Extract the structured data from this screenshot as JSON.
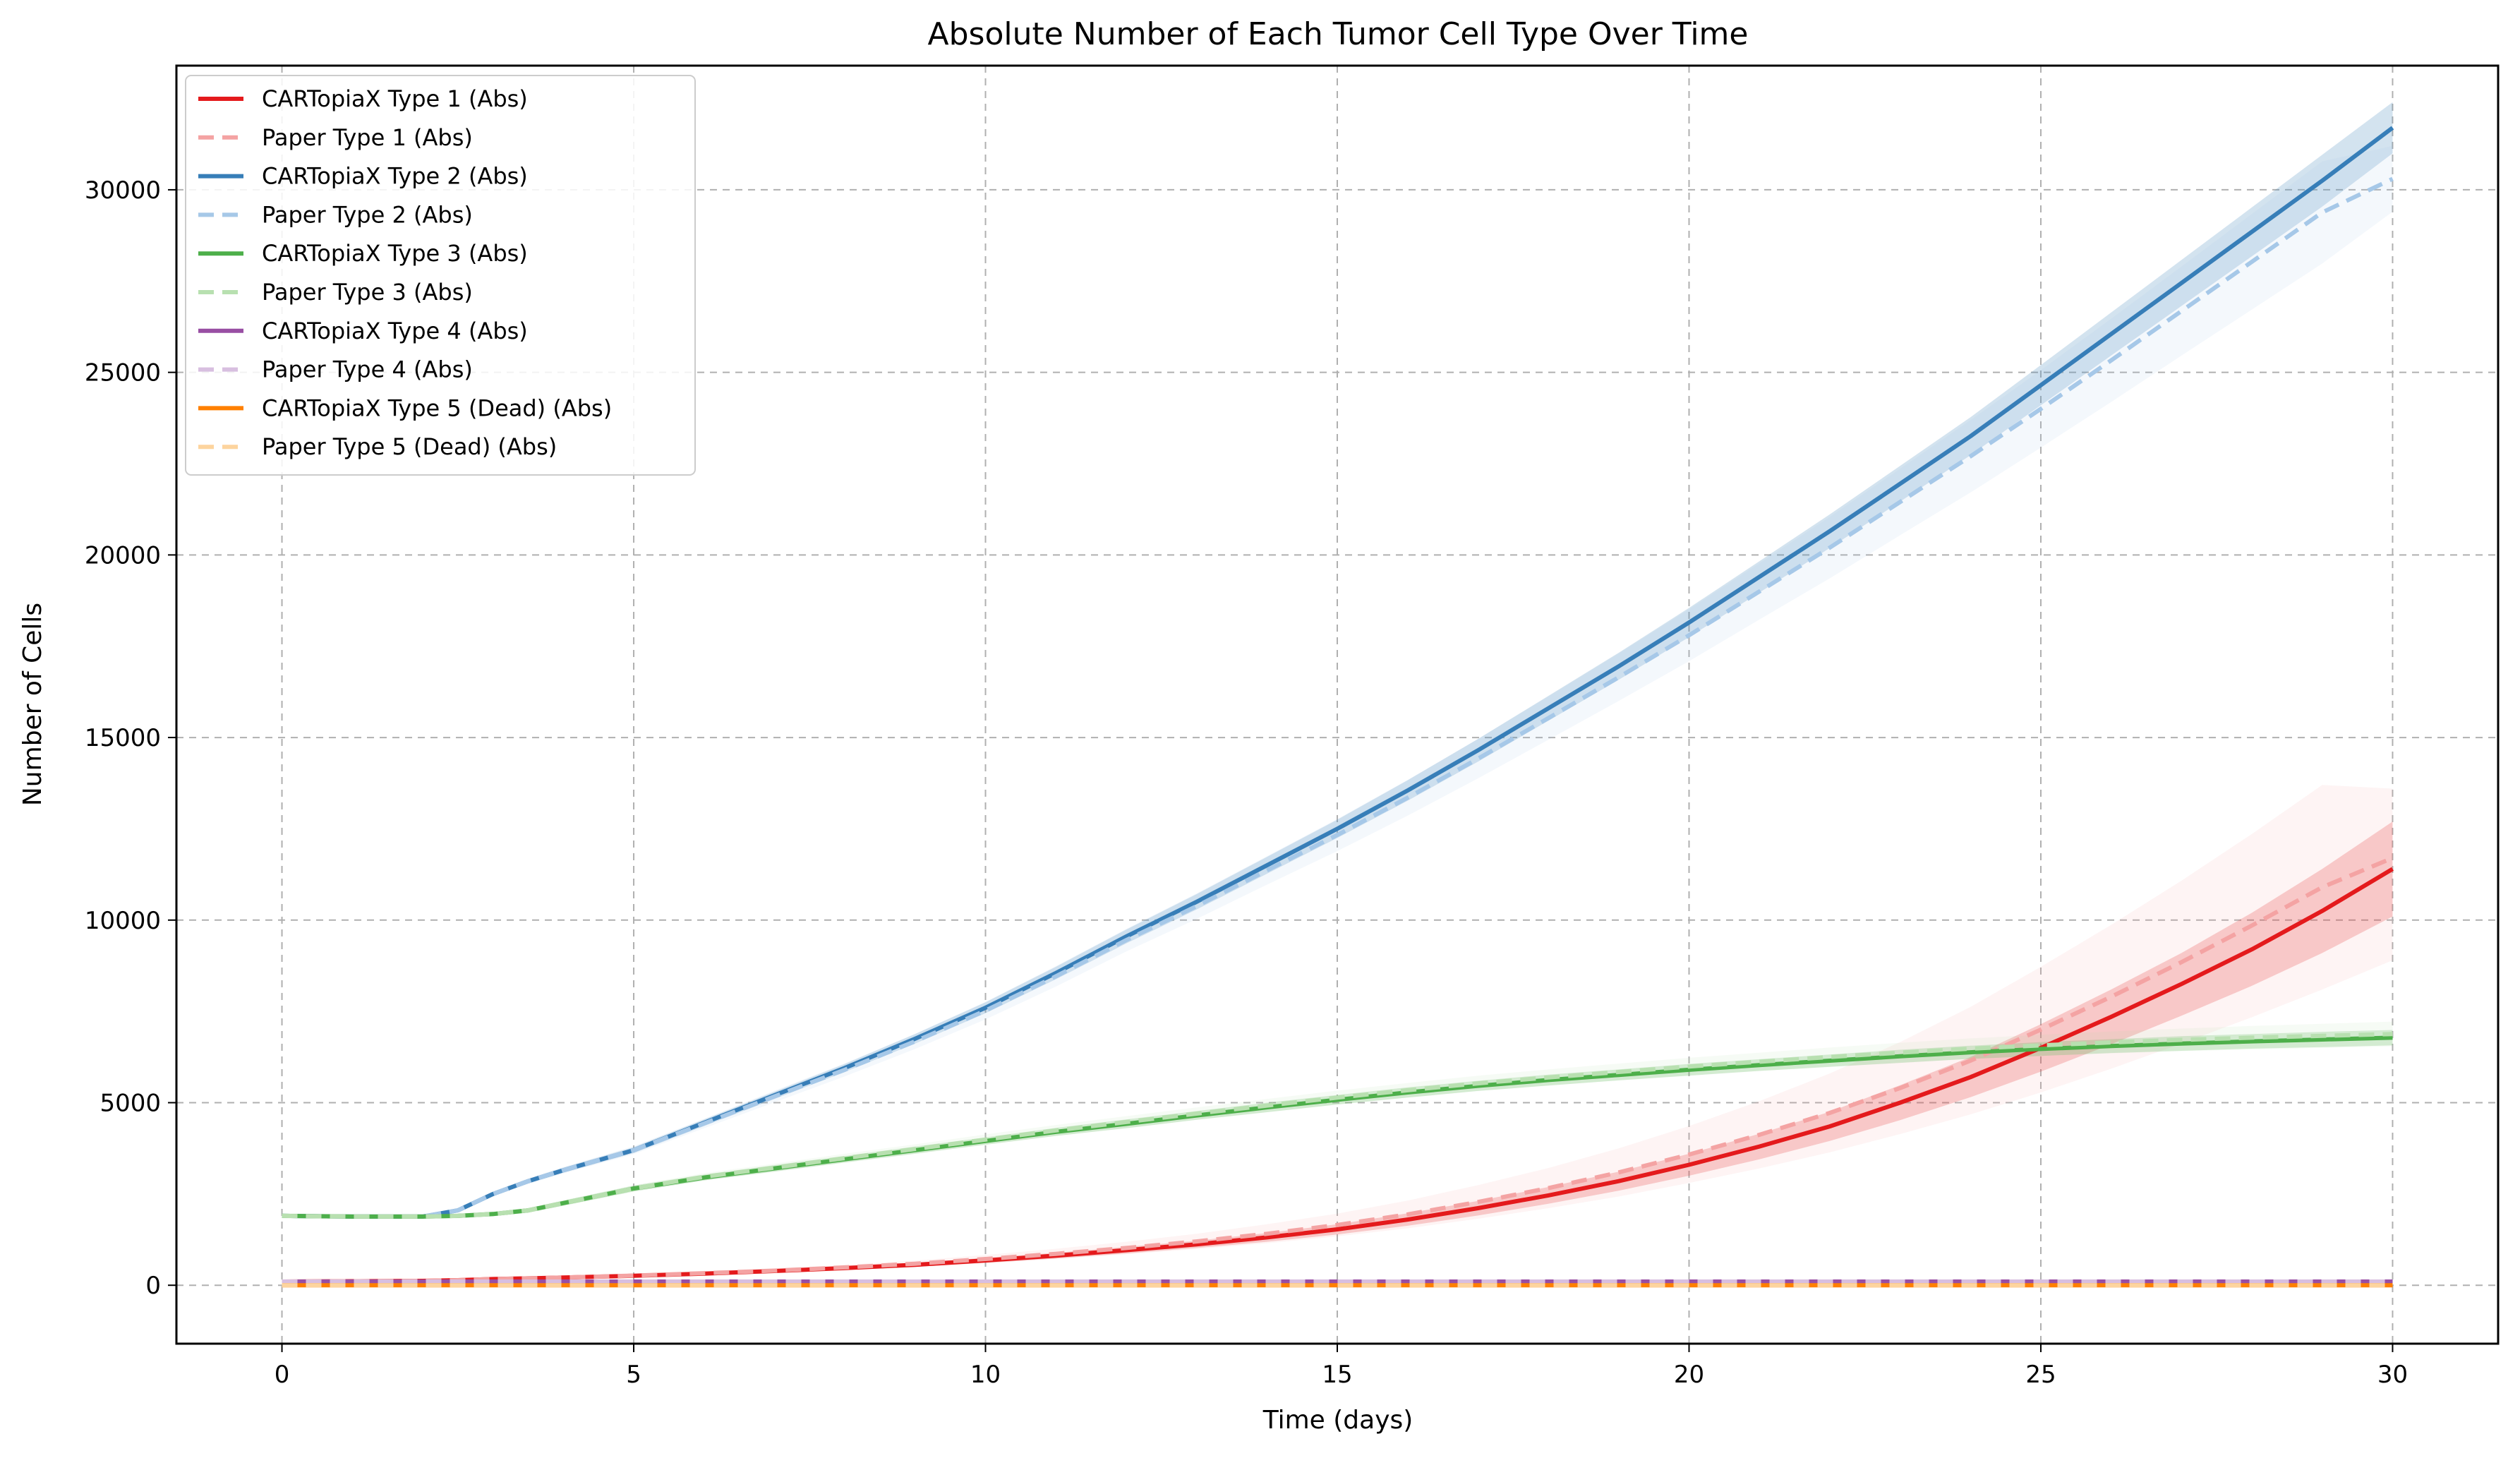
{
  "chart_data": {
    "type": "line",
    "title": "Absolute Number of Each Tumor Cell Type Over Time",
    "xlabel": "Time (days)",
    "ylabel": "Number of Cells",
    "xlim": [
      -1.5,
      31.5
    ],
    "ylim": [
      -1600,
      33400
    ],
    "xticks": [
      0,
      5,
      10,
      15,
      20,
      25,
      30
    ],
    "yticks": [
      0,
      5000,
      10000,
      15000,
      20000,
      25000,
      30000
    ],
    "grid": true,
    "legend_position": "top-left",
    "x": [
      0,
      1,
      2,
      2.5,
      3,
      3.5,
      4,
      5,
      6,
      7,
      8,
      9,
      10,
      11,
      12,
      13,
      14,
      15,
      16,
      17,
      18,
      19,
      20,
      21,
      22,
      23,
      24,
      25,
      26,
      27,
      28,
      29,
      30
    ],
    "series": [
      {
        "name": "CARTopiaX Type 1 (Abs)",
        "color": "#e41a1c",
        "dashed": false,
        "values": [
          100,
          110,
          120,
          140,
          170,
          190,
          210,
          260,
          320,
          390,
          470,
          560,
          680,
          810,
          960,
          1120,
          1310,
          1530,
          1800,
          2110,
          2460,
          2850,
          3300,
          3800,
          4350,
          5000,
          5700,
          6500,
          7350,
          8250,
          9200,
          10250,
          11400
        ],
        "lower": [
          90,
          100,
          110,
          130,
          155,
          175,
          190,
          235,
          290,
          350,
          420,
          505,
          610,
          730,
          870,
          1020,
          1190,
          1390,
          1630,
          1910,
          2230,
          2590,
          3000,
          3450,
          3950,
          4520,
          5150,
          5850,
          6600,
          7380,
          8200,
          9100,
          10100
        ],
        "upper": [
          110,
          120,
          130,
          150,
          185,
          205,
          230,
          285,
          350,
          430,
          520,
          615,
          750,
          890,
          1050,
          1220,
          1430,
          1670,
          1970,
          2310,
          2690,
          3110,
          3600,
          4150,
          4750,
          5480,
          6250,
          7150,
          8100,
          9100,
          10200,
          11400,
          12700
        ]
      },
      {
        "name": "Paper Type 1 (Abs)",
        "color": "#f4a3a3",
        "dashed": true,
        "values": [
          100,
          110,
          120,
          140,
          170,
          190,
          210,
          265,
          330,
          400,
          490,
          590,
          720,
          860,
          1020,
          1200,
          1410,
          1650,
          1940,
          2280,
          2660,
          3090,
          3580,
          4120,
          4720,
          5400,
          6150,
          7000,
          7900,
          8850,
          9850,
          10900,
          11700
        ],
        "lower": [
          90,
          100,
          110,
          130,
          150,
          170,
          190,
          235,
          290,
          350,
          425,
          505,
          610,
          720,
          850,
          990,
          1150,
          1340,
          1560,
          1820,
          2110,
          2430,
          2800,
          3200,
          3640,
          4140,
          4680,
          5280,
          5930,
          6620,
          7340,
          8100,
          8900
        ],
        "upper": [
          110,
          120,
          130,
          150,
          190,
          210,
          230,
          295,
          370,
          450,
          555,
          675,
          830,
          1000,
          1190,
          1410,
          1670,
          1960,
          2320,
          2740,
          3210,
          3750,
          4360,
          5040,
          5800,
          6660,
          7620,
          8720,
          9870,
          11080,
          12360,
          13700,
          13600
        ]
      },
      {
        "name": "CARTopiaX Type 2 (Abs)",
        "color": "#377eb8",
        "dashed": false,
        "values": [
          1900,
          1880,
          1880,
          2050,
          2500,
          2850,
          3150,
          3700,
          4450,
          5200,
          5950,
          6750,
          7600,
          8550,
          9550,
          10500,
          11500,
          12500,
          13550,
          14650,
          15800,
          16950,
          18150,
          19400,
          20650,
          21950,
          23250,
          24650,
          26050,
          27450,
          28850,
          30250,
          31700
        ],
        "lower": [
          1860,
          1840,
          1840,
          2000,
          2440,
          2790,
          3080,
          3620,
          4360,
          5100,
          5840,
          6620,
          7450,
          8380,
          9360,
          10290,
          11270,
          12250,
          13270,
          14340,
          15460,
          16580,
          17750,
          18970,
          20190,
          21460,
          22730,
          24100,
          25460,
          26820,
          28180,
          29540,
          31000
        ],
        "upper": [
          1940,
          1920,
          1920,
          2100,
          2560,
          2910,
          3220,
          3780,
          4540,
          5300,
          6060,
          6880,
          7750,
          8720,
          9740,
          10710,
          11730,
          12750,
          13830,
          14960,
          16140,
          17320,
          18550,
          19830,
          21110,
          22440,
          23770,
          25200,
          26640,
          28080,
          29520,
          30960,
          32400
        ]
      },
      {
        "name": "Paper Type 2 (Abs)",
        "color": "#a6c8e8",
        "dashed": true,
        "values": [
          1900,
          1880,
          1880,
          2050,
          2500,
          2850,
          3150,
          3700,
          4430,
          5170,
          5900,
          6680,
          7520,
          8460,
          9450,
          10380,
          11360,
          12330,
          13350,
          14420,
          15530,
          16650,
          17800,
          19000,
          20200,
          21450,
          22700,
          24000,
          25330,
          26680,
          28030,
          29380,
          30300
        ],
        "lower": [
          1850,
          1830,
          1830,
          1990,
          2430,
          2770,
          3060,
          3590,
          4300,
          5010,
          5720,
          6470,
          7280,
          8180,
          9140,
          10030,
          10970,
          11890,
          12860,
          13880,
          14940,
          16000,
          17090,
          18230,
          19360,
          20540,
          21710,
          22940,
          24190,
          25460,
          26720,
          27980,
          29400
        ],
        "upper": [
          1950,
          1930,
          1930,
          2110,
          2570,
          2930,
          3240,
          3810,
          4560,
          5330,
          6080,
          6890,
          7760,
          8740,
          9760,
          10730,
          11750,
          12770,
          13840,
          14960,
          16120,
          17300,
          18510,
          19770,
          21040,
          22360,
          23690,
          25060,
          26470,
          27900,
          29340,
          30780,
          31200
        ]
      },
      {
        "name": "CARTopiaX Type 3 (Abs)",
        "color": "#4daf4a",
        "dashed": false,
        "values": [
          1900,
          1880,
          1880,
          1900,
          1950,
          2050,
          2250,
          2650,
          2950,
          3200,
          3450,
          3700,
          3950,
          4200,
          4420,
          4650,
          4870,
          5080,
          5280,
          5460,
          5620,
          5760,
          5900,
          6030,
          6150,
          6270,
          6380,
          6470,
          6550,
          6620,
          6680,
          6730,
          6780
        ],
        "lower": [
          1840,
          1820,
          1820,
          1840,
          1890,
          1990,
          2180,
          2570,
          2870,
          3110,
          3360,
          3600,
          3850,
          4090,
          4300,
          4530,
          4740,
          4950,
          5140,
          5320,
          5470,
          5610,
          5740,
          5870,
          5980,
          6090,
          6200,
          6280,
          6360,
          6420,
          6480,
          6520,
          6570
        ],
        "upper": [
          1960,
          1940,
          1940,
          1960,
          2010,
          2110,
          2320,
          2730,
          3030,
          3290,
          3540,
          3800,
          4050,
          4310,
          4540,
          4770,
          5000,
          5210,
          5420,
          5600,
          5770,
          5910,
          6060,
          6190,
          6320,
          6450,
          6560,
          6660,
          6740,
          6820,
          6880,
          6940,
          6990
        ]
      },
      {
        "name": "Paper Type 3 (Abs)",
        "color": "#b8e0b0",
        "dashed": true,
        "values": [
          1900,
          1880,
          1880,
          1900,
          1950,
          2050,
          2250,
          2650,
          2970,
          3220,
          3480,
          3730,
          3990,
          4240,
          4470,
          4700,
          4920,
          5140,
          5340,
          5530,
          5690,
          5840,
          5990,
          6120,
          6250,
          6370,
          6480,
          6570,
          6650,
          6720,
          6780,
          6830,
          6880
        ],
        "lower": [
          1830,
          1810,
          1810,
          1830,
          1880,
          1980,
          2170,
          2560,
          2870,
          3110,
          3360,
          3600,
          3850,
          4090,
          4310,
          4530,
          4740,
          4950,
          5140,
          5320,
          5470,
          5610,
          5750,
          5870,
          5990,
          6100,
          6200,
          6280,
          6350,
          6410,
          6460,
          6500,
          6540
        ],
        "upper": [
          1970,
          1950,
          1950,
          1970,
          2020,
          2120,
          2330,
          2740,
          3070,
          3330,
          3600,
          3860,
          4130,
          4390,
          4630,
          4870,
          5100,
          5330,
          5540,
          5740,
          5910,
          6070,
          6230,
          6370,
          6510,
          6640,
          6760,
          6860,
          6950,
          7030,
          7100,
          7160,
          7220
        ]
      },
      {
        "name": "CARTopiaX Type 4 (Abs)",
        "color": "#984ea3",
        "dashed": false,
        "values": [
          100,
          100,
          100,
          100,
          100,
          100,
          100,
          100,
          100,
          100,
          100,
          100,
          100,
          100,
          100,
          100,
          100,
          100,
          100,
          100,
          100,
          100,
          100,
          100,
          100,
          100,
          100,
          100,
          100,
          100,
          100,
          100,
          100
        ]
      },
      {
        "name": "Paper Type 4 (Abs)",
        "color": "#d8bfe0",
        "dashed": true,
        "values": [
          100,
          100,
          100,
          100,
          100,
          100,
          100,
          100,
          100,
          100,
          100,
          100,
          100,
          100,
          100,
          100,
          100,
          100,
          100,
          100,
          100,
          100,
          100,
          100,
          100,
          100,
          100,
          100,
          100,
          100,
          100,
          100,
          100
        ]
      },
      {
        "name": "CARTopiaX Type 5 (Dead) (Abs)",
        "color": "#ff7f00",
        "dashed": false,
        "values": [
          0,
          0,
          0,
          0,
          0,
          0,
          0,
          0,
          0,
          0,
          0,
          0,
          0,
          0,
          0,
          0,
          0,
          0,
          0,
          0,
          0,
          0,
          0,
          0,
          0,
          0,
          0,
          0,
          0,
          0,
          0,
          0,
          0
        ]
      },
      {
        "name": "Paper Type 5 (Dead) (Abs)",
        "color": "#fdd49e",
        "dashed": true,
        "values": [
          0,
          0,
          0,
          0,
          0,
          0,
          0,
          0,
          0,
          0,
          0,
          0,
          0,
          0,
          0,
          0,
          0,
          0,
          0,
          0,
          0,
          0,
          0,
          0,
          0,
          0,
          0,
          0,
          0,
          0,
          0,
          0,
          0
        ]
      }
    ]
  }
}
